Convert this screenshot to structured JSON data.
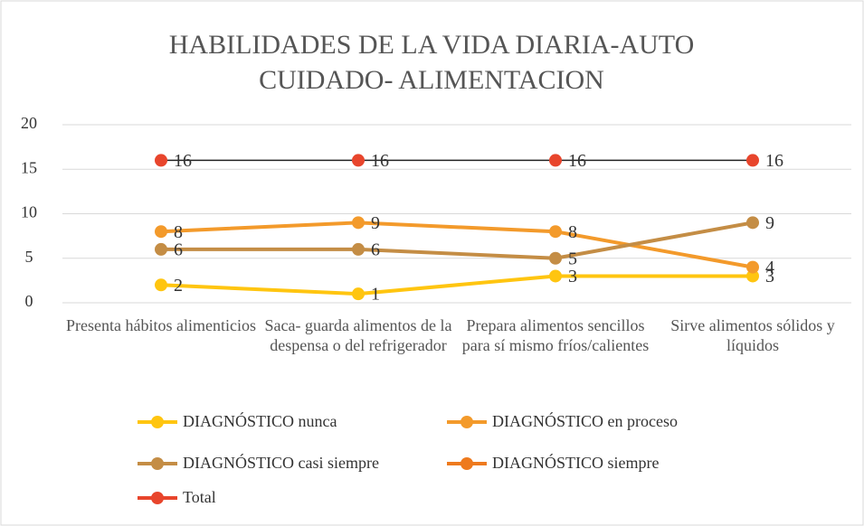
{
  "chart_data": {
    "type": "line",
    "title": "HABILIDADES DE LA VIDA DIARIA-AUTO CUIDADO- ALIMENTACION",
    "categories": [
      "Presenta hábitos alimenticios",
      "Saca- guarda alimentos de la despensa o del refrigerador",
      "Prepara alimentos sencillos para sí mismo fríos/calientes",
      "Sirve alimentos sólidos y líquidos"
    ],
    "series": [
      {
        "name": "DIAGNÓSTICO nunca",
        "color": "#FFC510",
        "values": [
          2,
          1,
          3,
          3
        ]
      },
      {
        "name": "DIAGNÓSTICO en proceso",
        "color": "#F39A2B",
        "values": [
          8,
          9,
          8,
          4
        ]
      },
      {
        "name": "DIAGNÓSTICO casi siempre",
        "color": "#C48D45",
        "values": [
          6,
          6,
          5,
          9
        ]
      },
      {
        "name": "DIAGNÓSTICO siempre",
        "color": "#EE7A1E",
        "values": [
          null,
          null,
          null,
          null
        ]
      },
      {
        "name": "Total",
        "color": "#E8452C",
        "line_color": "#222222",
        "values": [
          16,
          16,
          16,
          16
        ]
      }
    ],
    "ylim": [
      0,
      20
    ],
    "yticks": [
      0,
      5,
      10,
      15,
      20
    ],
    "grid": true,
    "legend": "bottom"
  }
}
